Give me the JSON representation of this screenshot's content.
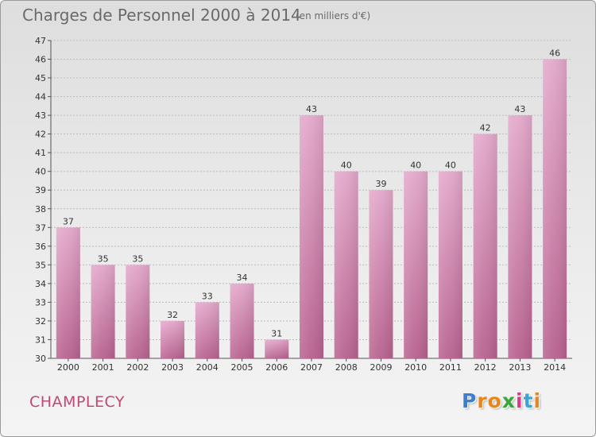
{
  "header": {
    "title": "Charges de Personnel 2000 à 2014",
    "subtitle": "(en milliers d'€)"
  },
  "footer": {
    "commune": "CHAMPLECY",
    "logo_text": "Proxiti",
    "logo_colors": [
      "#3a7fd0",
      "#e8861e",
      "#e8861e",
      "#3aa53a",
      "#d83a8a",
      "#3aa5d0",
      "#e8861e"
    ]
  },
  "colors": {
    "bar_fill": "#d37fb0",
    "bar_light": "#e3a8cb",
    "bar_dark": "#b8628f",
    "grid": "#bcbcbc",
    "commune": "#c04876"
  },
  "chart_data": {
    "type": "bar",
    "title": "Charges de Personnel 2000 à 2014",
    "subtitle": "(en milliers d'€)",
    "categories": [
      "2000",
      "2001",
      "2002",
      "2003",
      "2004",
      "2005",
      "2006",
      "2007",
      "2008",
      "2009",
      "2010",
      "2011",
      "2012",
      "2013",
      "2014"
    ],
    "values": [
      37,
      35,
      35,
      32,
      33,
      34,
      31,
      43,
      40,
      39,
      40,
      40,
      42,
      43,
      46
    ],
    "ylim": [
      30,
      47
    ],
    "yticks": [
      30,
      31,
      32,
      33,
      34,
      35,
      36,
      37,
      38,
      39,
      40,
      41,
      42,
      43,
      44,
      45,
      46,
      47
    ],
    "grid": true,
    "data_labels": true
  }
}
